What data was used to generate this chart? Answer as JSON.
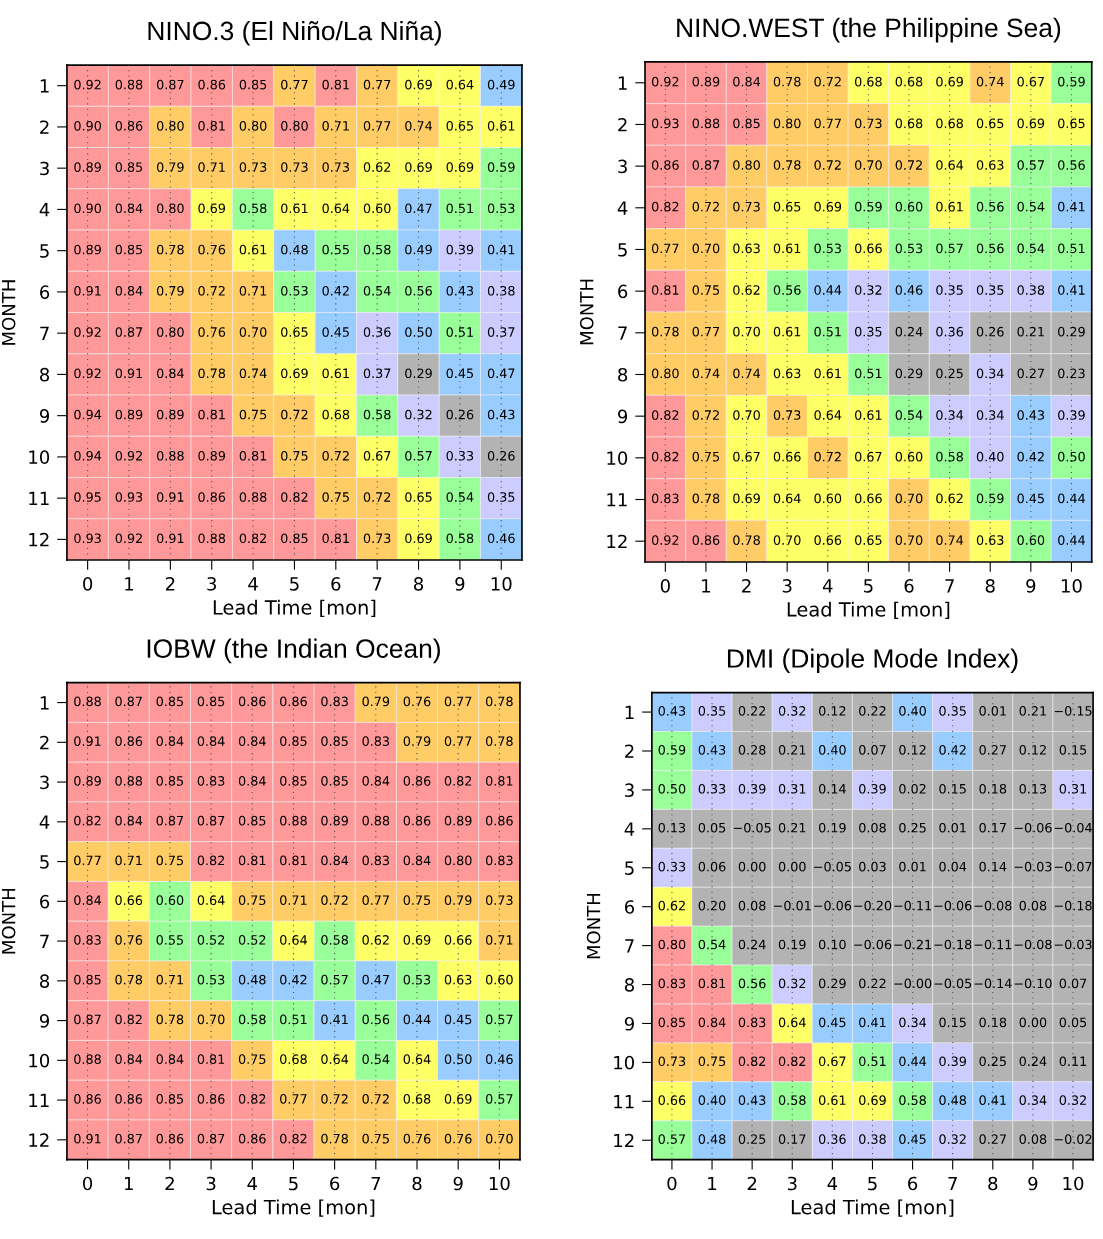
{
  "chart_data": [
    {
      "type": "heatmap",
      "title": "NINO.3 (El Niño/La Niña)",
      "xlabel": "Lead Time [mon]",
      "ylabel": "MONTH",
      "grid": "x",
      "data_labels": true,
      "categories": [
        "0",
        "1",
        "2",
        "3",
        "4",
        "5",
        "6",
        "7",
        "8",
        "9",
        "10"
      ],
      "y_categories": [
        "1",
        "2",
        "3",
        "4",
        "5",
        "6",
        "7",
        "8",
        "9",
        "10",
        "11",
        "12"
      ],
      "cells": [
        [
          0.92,
          0.88,
          0.87,
          0.86,
          0.85,
          0.77,
          0.81,
          0.77,
          0.69,
          0.64,
          0.49
        ],
        [
          0.9,
          0.86,
          0.8,
          0.81,
          0.8,
          0.8,
          0.71,
          0.77,
          0.74,
          0.65,
          0.61
        ],
        [
          0.89,
          0.85,
          0.79,
          0.71,
          0.73,
          0.73,
          0.73,
          0.62,
          0.69,
          0.69,
          0.59
        ],
        [
          0.9,
          0.84,
          0.8,
          0.69,
          0.58,
          0.61,
          0.64,
          0.6,
          0.47,
          0.51,
          0.53
        ],
        [
          0.89,
          0.85,
          0.78,
          0.76,
          0.61,
          0.48,
          0.55,
          0.58,
          0.49,
          0.39,
          0.41
        ],
        [
          0.91,
          0.84,
          0.79,
          0.72,
          0.71,
          0.53,
          0.42,
          0.54,
          0.56,
          0.43,
          0.38
        ],
        [
          0.92,
          0.87,
          0.8,
          0.76,
          0.7,
          0.65,
          0.45,
          0.36,
          0.5,
          0.51,
          0.37
        ],
        [
          0.92,
          0.91,
          0.84,
          0.78,
          0.74,
          0.69,
          0.61,
          0.37,
          0.29,
          0.45,
          0.47
        ],
        [
          0.94,
          0.89,
          0.89,
          0.81,
          0.75,
          0.72,
          0.68,
          0.58,
          0.32,
          0.26,
          0.43
        ],
        [
          0.94,
          0.92,
          0.88,
          0.89,
          0.81,
          0.75,
          0.72,
          0.67,
          0.57,
          0.33,
          0.26
        ],
        [
          0.95,
          0.93,
          0.91,
          0.86,
          0.88,
          0.82,
          0.75,
          0.72,
          0.65,
          0.54,
          0.35
        ],
        [
          0.93,
          0.92,
          0.91,
          0.88,
          0.82,
          0.85,
          0.81,
          0.73,
          0.69,
          0.58,
          0.46
        ]
      ],
      "cell_labels": [
        [
          "0.92",
          "0.88",
          "0.87",
          "0.86",
          "0.85",
          "0.77",
          "0.81",
          "0.77",
          "0.69",
          "0.64",
          "0.49"
        ],
        [
          "0.90",
          "0.86",
          "0.80",
          "0.81",
          "0.80",
          "0.80",
          "0.71",
          "0.77",
          "0.74",
          "0.65",
          "0.61"
        ],
        [
          "0.89",
          "0.85",
          "0.79",
          "0.71",
          "0.73",
          "0.73",
          "0.73",
          "0.62",
          "0.69",
          "0.69",
          "0.59"
        ],
        [
          "0.90",
          "0.84",
          "0.80",
          "0.69",
          "0.58",
          "0.61",
          "0.64",
          "0.60",
          "0.47",
          "0.51",
          "0.53"
        ],
        [
          "0.89",
          "0.85",
          "0.78",
          "0.76",
          "0.61",
          "0.48",
          "0.55",
          "0.58",
          "0.49",
          "0.39",
          "0.41"
        ],
        [
          "0.91",
          "0.84",
          "0.79",
          "0.72",
          "0.71",
          "0.53",
          "0.42",
          "0.54",
          "0.56",
          "0.43",
          "0.38"
        ],
        [
          "0.92",
          "0.87",
          "0.80",
          "0.76",
          "0.70",
          "0.65",
          "0.45",
          "0.36",
          "0.50",
          "0.51",
          "0.37"
        ],
        [
          "0.92",
          "0.91",
          "0.84",
          "0.78",
          "0.74",
          "0.69",
          "0.61",
          "0.37",
          "0.29",
          "0.45",
          "0.47"
        ],
        [
          "0.94",
          "0.89",
          "0.89",
          "0.81",
          "0.75",
          "0.72",
          "0.68",
          "0.58",
          "0.32",
          "0.26",
          "0.43"
        ],
        [
          "0.94",
          "0.92",
          "0.88",
          "0.89",
          "0.81",
          "0.75",
          "0.72",
          "0.67",
          "0.57",
          "0.33",
          "0.26"
        ],
        [
          "0.95",
          "0.93",
          "0.91",
          "0.86",
          "0.88",
          "0.82",
          "0.75",
          "0.72",
          "0.65",
          "0.54",
          "0.35"
        ],
        [
          "0.93",
          "0.92",
          "0.91",
          "0.88",
          "0.82",
          "0.85",
          "0.81",
          "0.73",
          "0.69",
          "0.58",
          "0.46"
        ]
      ],
      "colors": [
        [
          "#ff9999",
          "#ff9999",
          "#ff9999",
          "#ff9999",
          "#ff9999",
          "#ffcc66",
          "#ff9999",
          "#ffcc66",
          "#ffff66",
          "#ffff66",
          "#99ccff"
        ],
        [
          "#ff9999",
          "#ff9999",
          "#ffcc66",
          "#ff9999",
          "#ffcc66",
          "#ff9999",
          "#ffcc66",
          "#ffcc66",
          "#ffcc66",
          "#ffff66",
          "#ffff66"
        ],
        [
          "#ff9999",
          "#ff9999",
          "#ffcc66",
          "#ffcc66",
          "#ffcc66",
          "#ffcc66",
          "#ffcc66",
          "#ffff66",
          "#ffff66",
          "#ffff66",
          "#99ff99"
        ],
        [
          "#ff9999",
          "#ff9999",
          "#ff9999",
          "#ffff66",
          "#99ff99",
          "#ffff66",
          "#ffff66",
          "#ffff66",
          "#99ccff",
          "#99ff99",
          "#99ff99"
        ],
        [
          "#ff9999",
          "#ff9999",
          "#ffcc66",
          "#ffcc66",
          "#ffff66",
          "#99ccff",
          "#99ff99",
          "#99ff99",
          "#99ccff",
          "#ccccff",
          "#99ccff"
        ],
        [
          "#ff9999",
          "#ff9999",
          "#ffcc66",
          "#ffcc66",
          "#ffcc66",
          "#99ff99",
          "#99ccff",
          "#99ff99",
          "#99ff99",
          "#99ccff",
          "#ccccff"
        ],
        [
          "#ff9999",
          "#ff9999",
          "#ff9999",
          "#ffcc66",
          "#ffcc66",
          "#ffff66",
          "#99ccff",
          "#ccccff",
          "#99ccff",
          "#99ff99",
          "#ccccff"
        ],
        [
          "#ff9999",
          "#ff9999",
          "#ff9999",
          "#ffcc66",
          "#ffcc66",
          "#ffff66",
          "#ffff66",
          "#ccccff",
          "#b3b3b3",
          "#99ccff",
          "#99ccff"
        ],
        [
          "#ff9999",
          "#ff9999",
          "#ff9999",
          "#ff9999",
          "#ffcc66",
          "#ffcc66",
          "#ffff66",
          "#99ff99",
          "#ccccff",
          "#b3b3b3",
          "#99ccff"
        ],
        [
          "#ff9999",
          "#ff9999",
          "#ff9999",
          "#ff9999",
          "#ff9999",
          "#ffcc66",
          "#ffcc66",
          "#ffff66",
          "#99ff99",
          "#ccccff",
          "#b3b3b3"
        ],
        [
          "#ff9999",
          "#ff9999",
          "#ff9999",
          "#ff9999",
          "#ff9999",
          "#ff9999",
          "#ffcc66",
          "#ffcc66",
          "#ffff66",
          "#99ff99",
          "#ccccff"
        ],
        [
          "#ff9999",
          "#ff9999",
          "#ff9999",
          "#ff9999",
          "#ff9999",
          "#ff9999",
          "#ff9999",
          "#ffcc66",
          "#ffff66",
          "#99ff99",
          "#99ccff"
        ]
      ]
    },
    {
      "type": "heatmap",
      "title": "NINO.WEST (the Philippine Sea)",
      "xlabel": "Lead Time [mon]",
      "ylabel": "MONTH",
      "grid": "x",
      "data_labels": true,
      "categories": [
        "0",
        "1",
        "2",
        "3",
        "4",
        "5",
        "6",
        "7",
        "8",
        "9",
        "10"
      ],
      "y_categories": [
        "1",
        "2",
        "3",
        "4",
        "5",
        "6",
        "7",
        "8",
        "9",
        "10",
        "11",
        "12"
      ],
      "cells": [
        [
          0.92,
          0.89,
          0.84,
          0.78,
          0.72,
          0.68,
          0.68,
          0.69,
          0.74,
          0.67,
          0.59
        ],
        [
          0.93,
          0.88,
          0.85,
          0.8,
          0.77,
          0.73,
          0.68,
          0.68,
          0.65,
          0.69,
          0.65
        ],
        [
          0.86,
          0.87,
          0.8,
          0.78,
          0.72,
          0.7,
          0.72,
          0.64,
          0.63,
          0.57,
          0.56
        ],
        [
          0.82,
          0.72,
          0.73,
          0.65,
          0.69,
          0.59,
          0.6,
          0.61,
          0.56,
          0.54,
          0.41
        ],
        [
          0.77,
          0.7,
          0.63,
          0.61,
          0.53,
          0.66,
          0.53,
          0.57,
          0.56,
          0.54,
          0.51
        ],
        [
          0.81,
          0.75,
          0.62,
          0.56,
          0.44,
          0.32,
          0.46,
          0.35,
          0.35,
          0.38,
          0.41
        ],
        [
          0.78,
          0.77,
          0.7,
          0.61,
          0.51,
          0.35,
          0.24,
          0.36,
          0.26,
          0.21,
          0.29
        ],
        [
          0.8,
          0.74,
          0.74,
          0.63,
          0.61,
          0.51,
          0.29,
          0.25,
          0.34,
          0.27,
          0.23
        ],
        [
          0.82,
          0.72,
          0.7,
          0.73,
          0.64,
          0.61,
          0.54,
          0.34,
          0.34,
          0.43,
          0.39
        ],
        [
          0.82,
          0.75,
          0.67,
          0.66,
          0.72,
          0.67,
          0.6,
          0.58,
          0.4,
          0.42,
          0.5
        ],
        [
          0.83,
          0.78,
          0.69,
          0.64,
          0.6,
          0.66,
          0.7,
          0.62,
          0.59,
          0.45,
          0.44
        ],
        [
          0.92,
          0.86,
          0.78,
          0.7,
          0.66,
          0.65,
          0.7,
          0.74,
          0.63,
          0.6,
          0.44
        ]
      ],
      "cell_labels": [
        [
          "0.92",
          "0.89",
          "0.84",
          "0.78",
          "0.72",
          "0.68",
          "0.68",
          "0.69",
          "0.74",
          "0.67",
          "0.59"
        ],
        [
          "0.93",
          "0.88",
          "0.85",
          "0.80",
          "0.77",
          "0.73",
          "0.68",
          "0.68",
          "0.65",
          "0.69",
          "0.65"
        ],
        [
          "0.86",
          "0.87",
          "0.80",
          "0.78",
          "0.72",
          "0.70",
          "0.72",
          "0.64",
          "0.63",
          "0.57",
          "0.56"
        ],
        [
          "0.82",
          "0.72",
          "0.73",
          "0.65",
          "0.69",
          "0.59",
          "0.60",
          "0.61",
          "0.56",
          "0.54",
          "0.41"
        ],
        [
          "0.77",
          "0.70",
          "0.63",
          "0.61",
          "0.53",
          "0.66",
          "0.53",
          "0.57",
          "0.56",
          "0.54",
          "0.51"
        ],
        [
          "0.81",
          "0.75",
          "0.62",
          "0.56",
          "0.44",
          "0.32",
          "0.46",
          "0.35",
          "0.35",
          "0.38",
          "0.41"
        ],
        [
          "0.78",
          "0.77",
          "0.70",
          "0.61",
          "0.51",
          "0.35",
          "0.24",
          "0.36",
          "0.26",
          "0.21",
          "0.29"
        ],
        [
          "0.80",
          "0.74",
          "0.74",
          "0.63",
          "0.61",
          "0.51",
          "0.29",
          "0.25",
          "0.34",
          "0.27",
          "0.23"
        ],
        [
          "0.82",
          "0.72",
          "0.70",
          "0.73",
          "0.64",
          "0.61",
          "0.54",
          "0.34",
          "0.34",
          "0.43",
          "0.39"
        ],
        [
          "0.82",
          "0.75",
          "0.67",
          "0.66",
          "0.72",
          "0.67",
          "0.60",
          "0.58",
          "0.40",
          "0.42",
          "0.50"
        ],
        [
          "0.83",
          "0.78",
          "0.69",
          "0.64",
          "0.60",
          "0.66",
          "0.70",
          "0.62",
          "0.59",
          "0.45",
          "0.44"
        ],
        [
          "0.92",
          "0.86",
          "0.78",
          "0.70",
          "0.66",
          "0.65",
          "0.70",
          "0.74",
          "0.63",
          "0.60",
          "0.44"
        ]
      ],
      "colors": [
        [
          "#ff9999",
          "#ff9999",
          "#ff9999",
          "#ffcc66",
          "#ffcc66",
          "#ffff66",
          "#ffff66",
          "#ffff66",
          "#ffcc66",
          "#ffff66",
          "#99ff99"
        ],
        [
          "#ff9999",
          "#ff9999",
          "#ff9999",
          "#ffcc66",
          "#ffcc66",
          "#ffcc66",
          "#ffff66",
          "#ffff66",
          "#ffff66",
          "#ffff66",
          "#ffff66"
        ],
        [
          "#ff9999",
          "#ff9999",
          "#ffcc66",
          "#ffcc66",
          "#ffcc66",
          "#ffcc66",
          "#ffcc66",
          "#ffff66",
          "#ffff66",
          "#99ff99",
          "#99ff99"
        ],
        [
          "#ff9999",
          "#ffcc66",
          "#ffcc66",
          "#ffff66",
          "#ffff66",
          "#99ff99",
          "#99ff99",
          "#ffff66",
          "#99ff99",
          "#99ff99",
          "#99ccff"
        ],
        [
          "#ffcc66",
          "#ffcc66",
          "#ffff66",
          "#ffff66",
          "#99ff99",
          "#ffff66",
          "#99ff99",
          "#99ff99",
          "#99ff99",
          "#99ff99",
          "#99ff99"
        ],
        [
          "#ff9999",
          "#ffcc66",
          "#ffff66",
          "#99ff99",
          "#99ccff",
          "#ccccff",
          "#99ccff",
          "#ccccff",
          "#ccccff",
          "#ccccff",
          "#99ccff"
        ],
        [
          "#ffcc66",
          "#ffcc66",
          "#ffff66",
          "#ffff66",
          "#99ff99",
          "#ccccff",
          "#b3b3b3",
          "#ccccff",
          "#b3b3b3",
          "#b3b3b3",
          "#b3b3b3"
        ],
        [
          "#ffcc66",
          "#ffcc66",
          "#ffcc66",
          "#ffff66",
          "#ffff66",
          "#99ff99",
          "#b3b3b3",
          "#b3b3b3",
          "#ccccff",
          "#b3b3b3",
          "#b3b3b3"
        ],
        [
          "#ff9999",
          "#ffcc66",
          "#ffff66",
          "#ffcc66",
          "#ffff66",
          "#ffff66",
          "#99ff99",
          "#ccccff",
          "#ccccff",
          "#99ccff",
          "#ccccff"
        ],
        [
          "#ff9999",
          "#ffcc66",
          "#ffff66",
          "#ffff66",
          "#ffcc66",
          "#ffff66",
          "#ffff66",
          "#99ff99",
          "#ccccff",
          "#99ccff",
          "#99ff99"
        ],
        [
          "#ff9999",
          "#ffcc66",
          "#ffff66",
          "#ffff66",
          "#ffff66",
          "#ffff66",
          "#ffcc66",
          "#ffff66",
          "#99ff99",
          "#99ccff",
          "#99ccff"
        ],
        [
          "#ff9999",
          "#ff9999",
          "#ffcc66",
          "#ffff66",
          "#ffff66",
          "#ffff66",
          "#ffcc66",
          "#ffcc66",
          "#ffff66",
          "#99ff99",
          "#99ccff"
        ]
      ]
    },
    {
      "type": "heatmap",
      "title": "IOBW (the Indian Ocean)",
      "xlabel": "Lead Time [mon]",
      "ylabel": "MONTH",
      "grid": "x",
      "data_labels": true,
      "categories": [
        "0",
        "1",
        "2",
        "3",
        "4",
        "5",
        "6",
        "7",
        "8",
        "9",
        "10"
      ],
      "y_categories": [
        "1",
        "2",
        "3",
        "4",
        "5",
        "6",
        "7",
        "8",
        "9",
        "10",
        "11",
        "12"
      ],
      "cells": [
        [
          0.88,
          0.87,
          0.85,
          0.85,
          0.86,
          0.86,
          0.83,
          0.79,
          0.76,
          0.77,
          0.78
        ],
        [
          0.91,
          0.86,
          0.84,
          0.84,
          0.84,
          0.85,
          0.85,
          0.83,
          0.79,
          0.77,
          0.78
        ],
        [
          0.89,
          0.88,
          0.85,
          0.83,
          0.84,
          0.85,
          0.85,
          0.84,
          0.86,
          0.82,
          0.81
        ],
        [
          0.82,
          0.84,
          0.87,
          0.87,
          0.85,
          0.88,
          0.89,
          0.88,
          0.86,
          0.89,
          0.86
        ],
        [
          0.77,
          0.71,
          0.75,
          0.82,
          0.81,
          0.81,
          0.84,
          0.83,
          0.84,
          0.8,
          0.83
        ],
        [
          0.84,
          0.66,
          0.6,
          0.64,
          0.75,
          0.71,
          0.72,
          0.77,
          0.75,
          0.79,
          0.73
        ],
        [
          0.83,
          0.76,
          0.55,
          0.52,
          0.52,
          0.64,
          0.58,
          0.62,
          0.69,
          0.66,
          0.71
        ],
        [
          0.85,
          0.78,
          0.71,
          0.53,
          0.48,
          0.42,
          0.57,
          0.47,
          0.53,
          0.63,
          0.6
        ],
        [
          0.87,
          0.82,
          0.78,
          0.7,
          0.58,
          0.51,
          0.41,
          0.56,
          0.44,
          0.45,
          0.57
        ],
        [
          0.88,
          0.84,
          0.84,
          0.81,
          0.75,
          0.68,
          0.64,
          0.54,
          0.64,
          0.5,
          0.46
        ],
        [
          0.86,
          0.86,
          0.85,
          0.86,
          0.82,
          0.77,
          0.72,
          0.72,
          0.68,
          0.69,
          0.57
        ],
        [
          0.91,
          0.87,
          0.86,
          0.87,
          0.86,
          0.82,
          0.78,
          0.75,
          0.76,
          0.76,
          0.7
        ]
      ],
      "cell_labels": [
        [
          "0.88",
          "0.87",
          "0.85",
          "0.85",
          "0.86",
          "0.86",
          "0.83",
          "0.79",
          "0.76",
          "0.77",
          "0.78"
        ],
        [
          "0.91",
          "0.86",
          "0.84",
          "0.84",
          "0.84",
          "0.85",
          "0.85",
          "0.83",
          "0.79",
          "0.77",
          "0.78"
        ],
        [
          "0.89",
          "0.88",
          "0.85",
          "0.83",
          "0.84",
          "0.85",
          "0.85",
          "0.84",
          "0.86",
          "0.82",
          "0.81"
        ],
        [
          "0.82",
          "0.84",
          "0.87",
          "0.87",
          "0.85",
          "0.88",
          "0.89",
          "0.88",
          "0.86",
          "0.89",
          "0.86"
        ],
        [
          "0.77",
          "0.71",
          "0.75",
          "0.82",
          "0.81",
          "0.81",
          "0.84",
          "0.83",
          "0.84",
          "0.80",
          "0.83"
        ],
        [
          "0.84",
          "0.66",
          "0.60",
          "0.64",
          "0.75",
          "0.71",
          "0.72",
          "0.77",
          "0.75",
          "0.79",
          "0.73"
        ],
        [
          "0.83",
          "0.76",
          "0.55",
          "0.52",
          "0.52",
          "0.64",
          "0.58",
          "0.62",
          "0.69",
          "0.66",
          "0.71"
        ],
        [
          "0.85",
          "0.78",
          "0.71",
          "0.53",
          "0.48",
          "0.42",
          "0.57",
          "0.47",
          "0.53",
          "0.63",
          "0.60"
        ],
        [
          "0.87",
          "0.82",
          "0.78",
          "0.70",
          "0.58",
          "0.51",
          "0.41",
          "0.56",
          "0.44",
          "0.45",
          "0.57"
        ],
        [
          "0.88",
          "0.84",
          "0.84",
          "0.81",
          "0.75",
          "0.68",
          "0.64",
          "0.54",
          "0.64",
          "0.50",
          "0.46"
        ],
        [
          "0.86",
          "0.86",
          "0.85",
          "0.86",
          "0.82",
          "0.77",
          "0.72",
          "0.72",
          "0.68",
          "0.69",
          "0.57"
        ],
        [
          "0.91",
          "0.87",
          "0.86",
          "0.87",
          "0.86",
          "0.82",
          "0.78",
          "0.75",
          "0.76",
          "0.76",
          "0.70"
        ]
      ],
      "colors": [
        [
          "#ff9999",
          "#ff9999",
          "#ff9999",
          "#ff9999",
          "#ff9999",
          "#ff9999",
          "#ff9999",
          "#ffcc66",
          "#ffcc66",
          "#ffcc66",
          "#ffcc66"
        ],
        [
          "#ff9999",
          "#ff9999",
          "#ff9999",
          "#ff9999",
          "#ff9999",
          "#ff9999",
          "#ff9999",
          "#ff9999",
          "#ffcc66",
          "#ffcc66",
          "#ffcc66"
        ],
        [
          "#ff9999",
          "#ff9999",
          "#ff9999",
          "#ff9999",
          "#ff9999",
          "#ff9999",
          "#ff9999",
          "#ff9999",
          "#ff9999",
          "#ff9999",
          "#ff9999"
        ],
        [
          "#ff9999",
          "#ff9999",
          "#ff9999",
          "#ff9999",
          "#ff9999",
          "#ff9999",
          "#ff9999",
          "#ff9999",
          "#ff9999",
          "#ff9999",
          "#ff9999"
        ],
        [
          "#ffcc66",
          "#ffcc66",
          "#ffcc66",
          "#ff9999",
          "#ff9999",
          "#ff9999",
          "#ff9999",
          "#ff9999",
          "#ff9999",
          "#ff9999",
          "#ff9999"
        ],
        [
          "#ff9999",
          "#ffff66",
          "#99ff99",
          "#ffff66",
          "#ffcc66",
          "#ffcc66",
          "#ffcc66",
          "#ffcc66",
          "#ffcc66",
          "#ffcc66",
          "#ffcc66"
        ],
        [
          "#ff9999",
          "#ffcc66",
          "#99ff99",
          "#99ff99",
          "#99ff99",
          "#ffff66",
          "#99ff99",
          "#ffff66",
          "#ffff66",
          "#ffff66",
          "#ffcc66"
        ],
        [
          "#ff9999",
          "#ffcc66",
          "#ffcc66",
          "#99ff99",
          "#99ccff",
          "#99ccff",
          "#99ff99",
          "#99ccff",
          "#99ff99",
          "#ffff66",
          "#ffff66"
        ],
        [
          "#ff9999",
          "#ff9999",
          "#ffcc66",
          "#ffcc66",
          "#99ff99",
          "#99ff99",
          "#99ccff",
          "#99ff99",
          "#99ccff",
          "#99ccff",
          "#99ff99"
        ],
        [
          "#ff9999",
          "#ff9999",
          "#ff9999",
          "#ff9999",
          "#ffcc66",
          "#ffff66",
          "#ffff66",
          "#99ff99",
          "#ffff66",
          "#99ccff",
          "#99ccff"
        ],
        [
          "#ff9999",
          "#ff9999",
          "#ff9999",
          "#ff9999",
          "#ff9999",
          "#ffcc66",
          "#ffcc66",
          "#ffcc66",
          "#ffff66",
          "#ffff66",
          "#99ff99"
        ],
        [
          "#ff9999",
          "#ff9999",
          "#ff9999",
          "#ff9999",
          "#ff9999",
          "#ff9999",
          "#ffcc66",
          "#ffcc66",
          "#ffcc66",
          "#ffcc66",
          "#ffcc66"
        ]
      ]
    },
    {
      "type": "heatmap",
      "title": "DMI (Dipole Mode Index)",
      "xlabel": "Lead Time [mon]",
      "ylabel": "MONTH",
      "grid": "x",
      "data_labels": true,
      "categories": [
        "0",
        "1",
        "2",
        "3",
        "4",
        "5",
        "6",
        "7",
        "8",
        "9",
        "10"
      ],
      "y_categories": [
        "1",
        "2",
        "3",
        "4",
        "5",
        "6",
        "7",
        "8",
        "9",
        "10",
        "11",
        "12"
      ],
      "cells": [
        [
          0.43,
          0.35,
          0.22,
          0.32,
          0.12,
          0.22,
          0.4,
          0.35,
          0.01,
          0.21,
          -0.15
        ],
        [
          0.59,
          0.43,
          0.28,
          0.21,
          0.4,
          0.07,
          0.12,
          0.42,
          0.27,
          0.12,
          0.15
        ],
        [
          0.5,
          0.33,
          0.39,
          0.31,
          0.14,
          0.39,
          0.02,
          0.15,
          0.18,
          0.13,
          0.31
        ],
        [
          0.13,
          0.05,
          -0.05,
          0.21,
          0.19,
          0.08,
          0.25,
          0.01,
          0.17,
          -0.06,
          -0.04
        ],
        [
          0.33,
          0.06,
          0.0,
          0.0,
          -0.05,
          0.03,
          0.01,
          0.04,
          0.14,
          -0.03,
          -0.07
        ],
        [
          0.62,
          0.2,
          0.08,
          -0.01,
          -0.06,
          -0.2,
          -0.11,
          -0.06,
          -0.08,
          0.08,
          -0.18
        ],
        [
          0.8,
          0.54,
          0.24,
          0.19,
          0.1,
          -0.06,
          -0.21,
          -0.18,
          -0.11,
          -0.08,
          -0.03
        ],
        [
          0.83,
          0.81,
          0.56,
          0.32,
          0.29,
          0.22,
          -0.0,
          -0.05,
          -0.14,
          -0.1,
          0.07
        ],
        [
          0.85,
          0.84,
          0.83,
          0.64,
          0.45,
          0.41,
          0.34,
          0.15,
          0.18,
          0.0,
          0.05
        ],
        [
          0.73,
          0.75,
          0.82,
          0.82,
          0.67,
          0.51,
          0.44,
          0.39,
          0.25,
          0.24,
          0.11
        ],
        [
          0.66,
          0.4,
          0.43,
          0.58,
          0.61,
          0.69,
          0.58,
          0.48,
          0.41,
          0.34,
          0.32
        ],
        [
          0.57,
          0.48,
          0.25,
          0.17,
          0.36,
          0.38,
          0.45,
          0.32,
          0.27,
          0.08,
          -0.02
        ]
      ],
      "cell_labels": [
        [
          "0.43",
          "0.35",
          "0.22",
          "0.32",
          "0.12",
          "0.22",
          "0.40",
          "0.35",
          "0.01",
          "0.21",
          "−0.15"
        ],
        [
          "0.59",
          "0.43",
          "0.28",
          "0.21",
          "0.40",
          "0.07",
          "0.12",
          "0.42",
          "0.27",
          "0.12",
          "0.15"
        ],
        [
          "0.50",
          "0.33",
          "0.39",
          "0.31",
          "0.14",
          "0.39",
          "0.02",
          "0.15",
          "0.18",
          "0.13",
          "0.31"
        ],
        [
          "0.13",
          "0.05",
          "−0.05",
          "0.21",
          "0.19",
          "0.08",
          "0.25",
          "0.01",
          "0.17",
          "−0.06",
          "−0.04"
        ],
        [
          "0.33",
          "0.06",
          "0.00",
          "0.00",
          "−0.05",
          "0.03",
          "0.01",
          "0.04",
          "0.14",
          "−0.03",
          "−0.07"
        ],
        [
          "0.62",
          "0.20",
          "0.08",
          "−0.01",
          "−0.06",
          "−0.20",
          "−0.11",
          "−0.06",
          "−0.08",
          "0.08",
          "−0.18"
        ],
        [
          "0.80",
          "0.54",
          "0.24",
          "0.19",
          "0.10",
          "−0.06",
          "−0.21",
          "−0.18",
          "−0.11",
          "−0.08",
          "−0.03"
        ],
        [
          "0.83",
          "0.81",
          "0.56",
          "0.32",
          "0.29",
          "0.22",
          "−0.00",
          "−0.05",
          "−0.14",
          "−0.10",
          "0.07"
        ],
        [
          "0.85",
          "0.84",
          "0.83",
          "0.64",
          "0.45",
          "0.41",
          "0.34",
          "0.15",
          "0.18",
          "0.00",
          "0.05"
        ],
        [
          "0.73",
          "0.75",
          "0.82",
          "0.82",
          "0.67",
          "0.51",
          "0.44",
          "0.39",
          "0.25",
          "0.24",
          "0.11"
        ],
        [
          "0.66",
          "0.40",
          "0.43",
          "0.58",
          "0.61",
          "0.69",
          "0.58",
          "0.48",
          "0.41",
          "0.34",
          "0.32"
        ],
        [
          "0.57",
          "0.48",
          "0.25",
          "0.17",
          "0.36",
          "0.38",
          "0.45",
          "0.32",
          "0.27",
          "0.08",
          "−0.02"
        ]
      ],
      "colors": [
        [
          "#99ccff",
          "#ccccff",
          "#b3b3b3",
          "#ccccff",
          "#b3b3b3",
          "#b3b3b3",
          "#99ccff",
          "#ccccff",
          "#b3b3b3",
          "#b3b3b3",
          "#b3b3b3"
        ],
        [
          "#99ff99",
          "#99ccff",
          "#b3b3b3",
          "#b3b3b3",
          "#99ccff",
          "#b3b3b3",
          "#b3b3b3",
          "#99ccff",
          "#b3b3b3",
          "#b3b3b3",
          "#b3b3b3"
        ],
        [
          "#99ff99",
          "#ccccff",
          "#ccccff",
          "#ccccff",
          "#b3b3b3",
          "#ccccff",
          "#b3b3b3",
          "#b3b3b3",
          "#b3b3b3",
          "#b3b3b3",
          "#ccccff"
        ],
        [
          "#b3b3b3",
          "#b3b3b3",
          "#b3b3b3",
          "#b3b3b3",
          "#b3b3b3",
          "#b3b3b3",
          "#b3b3b3",
          "#b3b3b3",
          "#b3b3b3",
          "#b3b3b3",
          "#b3b3b3"
        ],
        [
          "#ccccff",
          "#b3b3b3",
          "#b3b3b3",
          "#b3b3b3",
          "#b3b3b3",
          "#b3b3b3",
          "#b3b3b3",
          "#b3b3b3",
          "#b3b3b3",
          "#b3b3b3",
          "#b3b3b3"
        ],
        [
          "#ffff66",
          "#b3b3b3",
          "#b3b3b3",
          "#b3b3b3",
          "#b3b3b3",
          "#b3b3b3",
          "#b3b3b3",
          "#b3b3b3",
          "#b3b3b3",
          "#b3b3b3",
          "#b3b3b3"
        ],
        [
          "#ff9999",
          "#99ff99",
          "#b3b3b3",
          "#b3b3b3",
          "#b3b3b3",
          "#b3b3b3",
          "#b3b3b3",
          "#b3b3b3",
          "#b3b3b3",
          "#b3b3b3",
          "#b3b3b3"
        ],
        [
          "#ff9999",
          "#ff9999",
          "#99ff99",
          "#ccccff",
          "#b3b3b3",
          "#b3b3b3",
          "#b3b3b3",
          "#b3b3b3",
          "#b3b3b3",
          "#b3b3b3",
          "#b3b3b3"
        ],
        [
          "#ff9999",
          "#ff9999",
          "#ff9999",
          "#ffff66",
          "#99ccff",
          "#99ccff",
          "#ccccff",
          "#b3b3b3",
          "#b3b3b3",
          "#b3b3b3",
          "#b3b3b3"
        ],
        [
          "#ffcc66",
          "#ffcc66",
          "#ff9999",
          "#ff9999",
          "#ffff66",
          "#99ff99",
          "#99ccff",
          "#ccccff",
          "#b3b3b3",
          "#b3b3b3",
          "#b3b3b3"
        ],
        [
          "#ffff66",
          "#99ccff",
          "#99ccff",
          "#99ff99",
          "#ffff66",
          "#ffff66",
          "#99ff99",
          "#99ccff",
          "#99ccff",
          "#ccccff",
          "#ccccff"
        ],
        [
          "#99ff99",
          "#99ccff",
          "#b3b3b3",
          "#b3b3b3",
          "#ccccff",
          "#ccccff",
          "#99ccff",
          "#ccccff",
          "#b3b3b3",
          "#b3b3b3",
          "#b3b3b3"
        ]
      ]
    }
  ]
}
